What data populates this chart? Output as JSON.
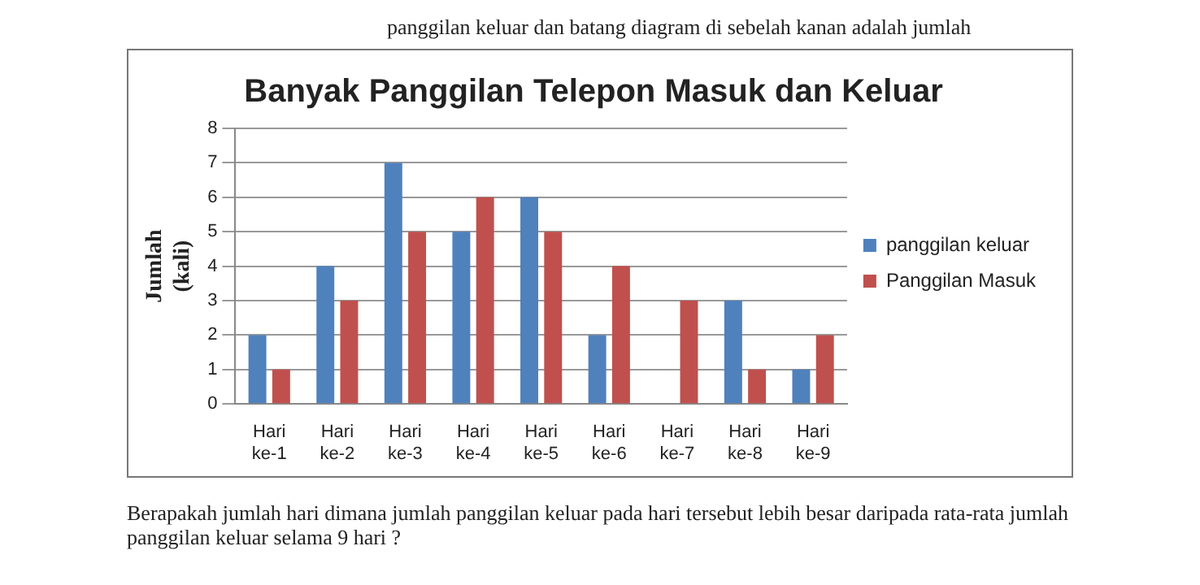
{
  "chart_data": {
    "type": "bar",
    "title": "Banyak Panggilan Telepon Masuk dan Keluar",
    "ylabel": "Jumlah (kali)",
    "categories": [
      "Hari ke-1",
      "Hari ke-2",
      "Hari ke-3",
      "Hari ke-4",
      "Hari ke-5",
      "Hari ke-6",
      "Hari ke-7",
      "Hari ke-8",
      "Hari ke-9"
    ],
    "series": [
      {
        "name": "panggilan keluar",
        "color": "#4f81bd",
        "values": [
          2,
          4,
          7,
          5,
          6,
          2,
          0,
          3,
          1
        ]
      },
      {
        "name": "Panggilan Masuk",
        "color": "#c0504d",
        "values": [
          1,
          3,
          5,
          6,
          5,
          4,
          3,
          1,
          2
        ]
      }
    ],
    "ylim": [
      0,
      8
    ],
    "yticks": [
      0,
      1,
      2,
      3,
      4,
      5,
      6,
      7,
      8
    ],
    "grid": "y",
    "legend": "right",
    "annotations": [
      "panggilan keluar dan batang diagram di sebelah kanan adalah jumlah",
      "Berapakah jumlah hari dimana jumlah panggilan keluar  pada hari tersebut  lebih besar daripada rata-rata jumlah panggilan keluar selama 9 hari ?"
    ]
  }
}
